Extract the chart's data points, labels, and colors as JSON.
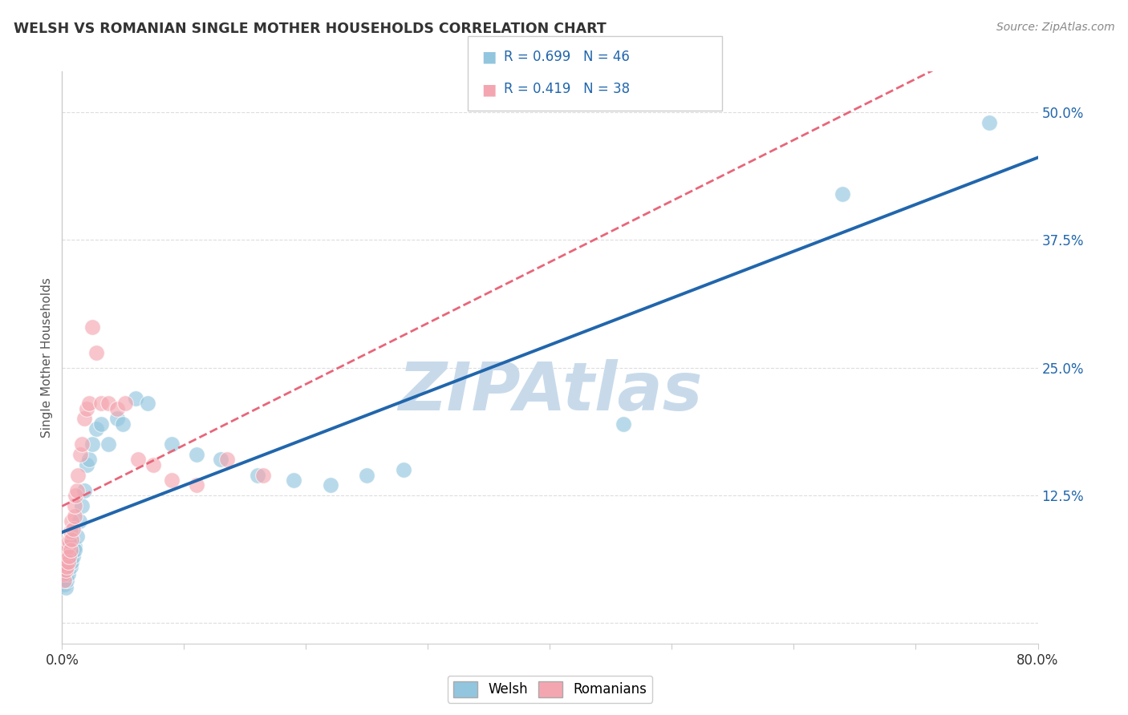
{
  "title": "WELSH VS ROMANIAN SINGLE MOTHER HOUSEHOLDS CORRELATION CHART",
  "source": "Source: ZipAtlas.com",
  "ylabel": "Single Mother Households",
  "xlim": [
    0.0,
    0.8
  ],
  "ylim": [
    -0.02,
    0.54
  ],
  "welsh_color": "#92c5de",
  "romanian_color": "#f4a6b0",
  "welsh_R": 0.699,
  "welsh_N": 46,
  "romanian_R": 0.419,
  "romanian_N": 38,
  "welsh_line_color": "#2166ac",
  "romanian_line_color": "#e8667a",
  "watermark": "ZIPAtlas",
  "watermark_color": "#c8daea",
  "background_color": "#ffffff",
  "grid_color": "#dddddd",
  "welsh_scatter_x": [
    0.001,
    0.002,
    0.002,
    0.003,
    0.003,
    0.003,
    0.004,
    0.004,
    0.004,
    0.005,
    0.005,
    0.005,
    0.006,
    0.006,
    0.007,
    0.007,
    0.008,
    0.008,
    0.009,
    0.01,
    0.01,
    0.012,
    0.014,
    0.016,
    0.018,
    0.02,
    0.022,
    0.025,
    0.028,
    0.032,
    0.038,
    0.045,
    0.05,
    0.06,
    0.07,
    0.09,
    0.11,
    0.13,
    0.16,
    0.19,
    0.22,
    0.25,
    0.28,
    0.46,
    0.64,
    0.76
  ],
  "welsh_scatter_y": [
    0.045,
    0.038,
    0.055,
    0.048,
    0.06,
    0.035,
    0.052,
    0.065,
    0.042,
    0.058,
    0.07,
    0.048,
    0.062,
    0.075,
    0.055,
    0.068,
    0.06,
    0.078,
    0.065,
    0.075,
    0.072,
    0.085,
    0.1,
    0.115,
    0.13,
    0.155,
    0.16,
    0.175,
    0.19,
    0.195,
    0.175,
    0.2,
    0.195,
    0.22,
    0.215,
    0.175,
    0.165,
    0.16,
    0.145,
    0.14,
    0.135,
    0.145,
    0.15,
    0.195,
    0.42,
    0.49
  ],
  "romanian_scatter_x": [
    0.001,
    0.002,
    0.002,
    0.003,
    0.003,
    0.004,
    0.004,
    0.005,
    0.005,
    0.006,
    0.006,
    0.007,
    0.007,
    0.008,
    0.008,
    0.009,
    0.01,
    0.01,
    0.011,
    0.012,
    0.013,
    0.015,
    0.016,
    0.018,
    0.02,
    0.022,
    0.025,
    0.028,
    0.032,
    0.038,
    0.045,
    0.052,
    0.062,
    0.075,
    0.09,
    0.11,
    0.135,
    0.165
  ],
  "romanian_scatter_y": [
    0.048,
    0.042,
    0.058,
    0.052,
    0.065,
    0.055,
    0.07,
    0.06,
    0.075,
    0.065,
    0.08,
    0.072,
    0.09,
    0.082,
    0.1,
    0.092,
    0.105,
    0.115,
    0.125,
    0.13,
    0.145,
    0.165,
    0.175,
    0.2,
    0.21,
    0.215,
    0.29,
    0.265,
    0.215,
    0.215,
    0.21,
    0.215,
    0.16,
    0.155,
    0.14,
    0.135,
    0.16,
    0.145
  ]
}
